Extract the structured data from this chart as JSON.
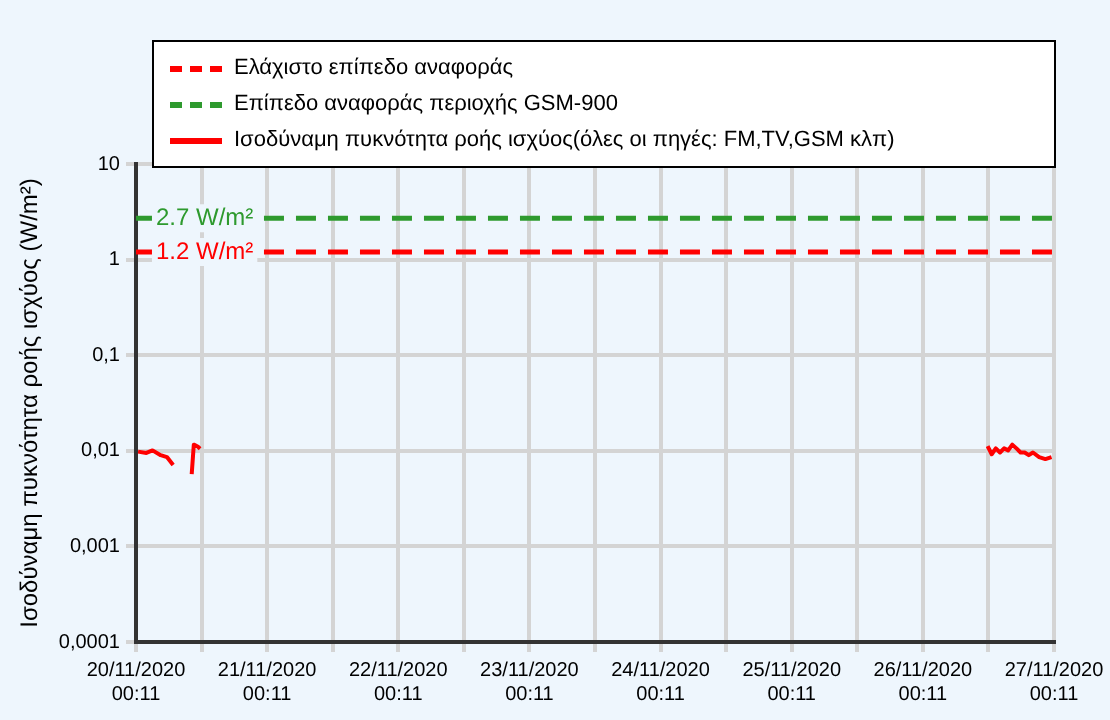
{
  "chart_data": {
    "type": "line",
    "ylabel": "Ισοδύναμη πυκνότητα ροής ισχύος (W/m²)",
    "log": "y",
    "grid": true,
    "legend": "top",
    "marker": "none",
    "xlim": [
      "2020-11-20T00:11",
      "2020-11-27T00:11"
    ],
    "xticks": [
      {
        "value": "2020-11-20T00:11",
        "label": "20/11/2020 00:11"
      },
      {
        "value": "2020-11-20T12:11",
        "label": null
      },
      {
        "value": "2020-11-21T00:11",
        "label": "21/11/2020 00:11"
      },
      {
        "value": "2020-11-21T12:11",
        "label": null
      },
      {
        "value": "2020-11-22T00:11",
        "label": "22/11/2020 00:11"
      },
      {
        "value": "2020-11-22T12:11",
        "label": null
      },
      {
        "value": "2020-11-23T00:11",
        "label": "23/11/2020 00:11"
      },
      {
        "value": "2020-11-23T12:11",
        "label": null
      },
      {
        "value": "2020-11-24T00:11",
        "label": "24/11/2020 00:11"
      },
      {
        "value": "2020-11-24T12:11",
        "label": null
      },
      {
        "value": "2020-11-25T00:11",
        "label": "25/11/2020 00:11"
      },
      {
        "value": "2020-11-25T12:11",
        "label": null
      },
      {
        "value": "2020-11-26T00:11",
        "label": "26/11/2020 00:11"
      },
      {
        "value": "2020-11-26T12:11",
        "label": null
      },
      {
        "value": "2020-11-27T00:11",
        "label": "27/11/2020 00:11"
      }
    ],
    "ylim": [
      0.0001,
      10
    ],
    "yticks": [
      {
        "value": 0.0001,
        "label": "0,0001"
      },
      {
        "value": 0.001,
        "label": "0,001"
      },
      {
        "value": 0.01,
        "label": "0,01"
      },
      {
        "value": 0.1,
        "label": "0,1"
      },
      1,
      10
    ],
    "series": [
      {
        "name": "Ελάχιστο επίπεδο αναφοράς",
        "line_style": "dashed",
        "color": "#ff0000",
        "x": [
          "2020-11-20T00:11",
          "2020-11-27T00:11"
        ],
        "values": [
          1.2,
          1.2
        ]
      },
      {
        "name": "Επίπεδο αναφοράς περιοχής GSM-900",
        "line_style": "dashed",
        "color": "#2e9a2e",
        "x": [
          "2020-11-20T00:11",
          "2020-11-27T00:11"
        ],
        "values": [
          2.7,
          2.7
        ]
      },
      {
        "name": "Ισοδύναμη πυκνότητα ροής ισχύος(όλες οι πηγές: FM,TV,GSM κλπ)",
        "line_style": "solid",
        "color": "#ff0000",
        "x": [
          "2020-11-20T00:34",
          "2020-11-20T02:05",
          "2020-11-20T03:13",
          "2020-11-20T04:42",
          "2020-11-20T05:51",
          "2020-11-20T06:59",
          "2020-11-20T08:40",
          "2020-11-20T10:23",
          "2020-11-20T10:46",
          "2020-11-20T11:32",
          "2020-11-20T11:55",
          "2020-11-23T00:11",
          "2020-11-26T12:02",
          "2020-11-26T12:47",
          "2020-11-26T13:32",
          "2020-11-26T14:18",
          "2020-11-26T15:03",
          "2020-11-26T15:48",
          "2020-11-26T16:33",
          "2020-11-26T17:19",
          "2020-11-26T18:04",
          "2020-11-26T18:49",
          "2020-11-26T19:34",
          "2020-11-26T20:20",
          "2020-11-26T21:28",
          "2020-11-26T22:36",
          "2020-11-26T23:44"
        ],
        "values": [
          0.0098,
          0.0095,
          0.0101,
          0.009,
          0.0086,
          0.0071,
          null,
          0.0057,
          0.0116,
          0.011,
          0.0105,
          null,
          0.0112,
          0.0092,
          0.0106,
          0.0096,
          0.0106,
          0.0101,
          0.0116,
          0.0106,
          0.0096,
          0.0096,
          0.009,
          0.0096,
          0.0086,
          0.0082,
          0.0086
        ]
      }
    ],
    "annotations": [
      {
        "text": "2.7 W/m²",
        "x": "2020-11-20T00:11",
        "y": 2.7
      },
      {
        "text": "1.2 W/m²",
        "x": "2020-11-20T00:11",
        "y": 1.2
      }
    ]
  }
}
